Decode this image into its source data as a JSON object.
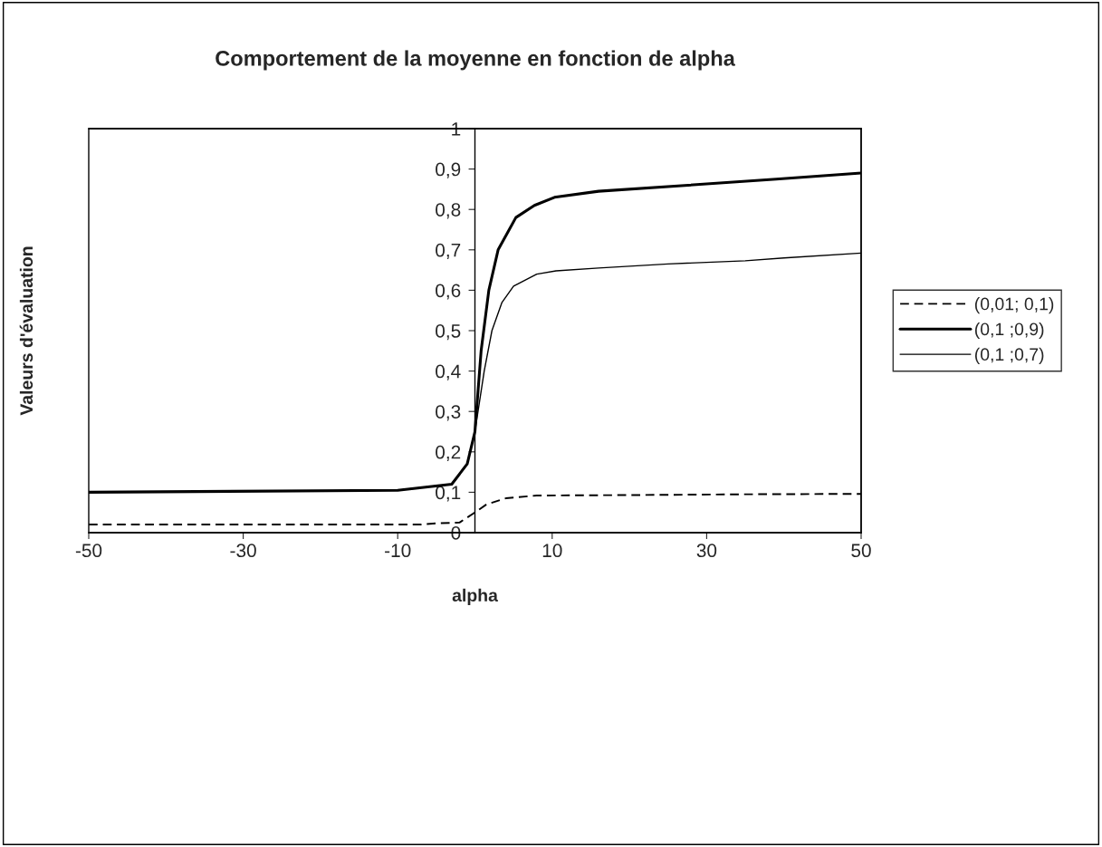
{
  "chart_data": {
    "type": "line",
    "title": "Comportement de la moyenne en fonction de alpha",
    "xlabel": "alpha",
    "ylabel": "Valeurs d'évaluation",
    "xlim": [
      -50,
      50
    ],
    "xticks": [
      -50,
      -30,
      -10,
      10,
      30,
      50
    ],
    "ylim": [
      0,
      1
    ],
    "yticks": [
      0,
      {
        "value": 0.1,
        "label": "0,1"
      },
      {
        "value": 0.2,
        "label": "0,2"
      },
      {
        "value": 0.3,
        "label": "0,3"
      },
      {
        "value": 0.4,
        "label": "0,4"
      },
      {
        "value": 0.5,
        "label": "0,5"
      },
      {
        "value": 0.6,
        "label": "0,6"
      },
      {
        "value": 0.7,
        "label": "0,7"
      },
      {
        "value": 0.8,
        "label": "0,8"
      },
      {
        "value": 0.9,
        "label": "0,9"
      },
      1
    ],
    "grid": false,
    "legend": "right",
    "marker": "none",
    "series": [
      {
        "name": "(0,01; 0,1)",
        "color": "#000000",
        "line_style": "dashed",
        "x": [
          -50,
          -30,
          -10,
          -7,
          -5,
          -2,
          0,
          1.5,
          4,
          8,
          20,
          35,
          50
        ],
        "values": [
          0.02,
          0.02,
          0.02,
          0.02,
          0.023,
          0.025,
          0.05,
          0.07,
          0.085,
          0.092,
          0.093,
          0.095,
          0.096
        ]
      },
      {
        "name": "(0,1 ;0,9)",
        "color": "#000000",
        "line_style": "solid",
        "x": [
          -50,
          -10,
          -3,
          -1,
          0,
          0.8,
          1.8,
          3,
          5.3,
          7.7,
          10.3,
          16,
          27.6,
          39,
          50
        ],
        "values": [
          0.1,
          0.105,
          0.12,
          0.17,
          0.25,
          0.45,
          0.6,
          0.7,
          0.78,
          0.81,
          0.83,
          0.845,
          0.86,
          0.875,
          0.89
        ]
      },
      {
        "name": "(0,1 ;0,7)",
        "color": "#000000",
        "line_style": "solid",
        "x": [
          -50,
          -10,
          -3,
          -1,
          0,
          1.2,
          2.2,
          3.5,
          5,
          8,
          10.5,
          16,
          25,
          35,
          40,
          50
        ],
        "values": [
          0.1,
          0.105,
          0.12,
          0.17,
          0.25,
          0.4,
          0.5,
          0.57,
          0.61,
          0.64,
          0.648,
          0.655,
          0.665,
          0.673,
          0.68,
          0.692
        ]
      }
    ]
  }
}
